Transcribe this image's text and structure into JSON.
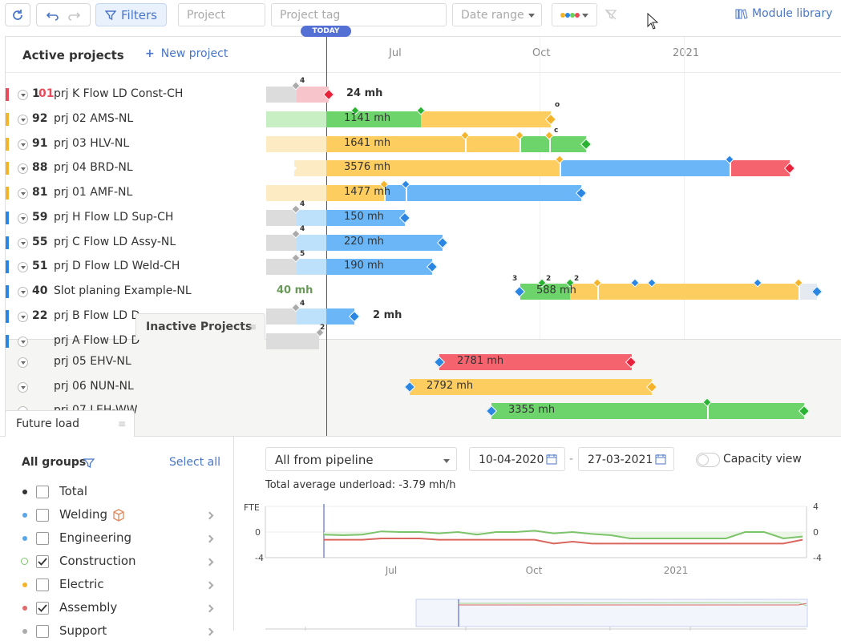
{
  "toolbar": {
    "filters_label": "Filters",
    "project_placeholder": "Project",
    "project_tag_placeholder": "Project tag",
    "date_range_placeholder": "Date range",
    "module_library_label": "Module library"
  },
  "gantt": {
    "today_label": "TODAY",
    "active_title": "Active projects",
    "new_project_label": "New project",
    "axis_labels": [
      "Jul",
      "Oct",
      "2021"
    ],
    "inactive_title": "Inactive Projects",
    "future_load_title": "Future load",
    "active_rows": [
      {
        "num": "1",
        "num_red": "01",
        "name": "prj K Flow LD Const-CH",
        "flag": "#e84b5a",
        "load": "24 mh"
      },
      {
        "num": "92",
        "name": "prj 02 AMS-NL",
        "flag": "#f3b32a",
        "load": "1141 mh"
      },
      {
        "num": "91",
        "name": "prj 03 HLV-NL",
        "flag": "#f3b32a",
        "load": "1641 mh"
      },
      {
        "num": "88",
        "name": "prj 04 BRD-NL",
        "flag": "#f3b32a",
        "load": "3576 mh"
      },
      {
        "num": "81",
        "name": "prj 01 AMF-NL",
        "flag": "#f3b32a",
        "load": "1477 mh"
      },
      {
        "num": "59",
        "name": "prj H Flow LD Sup-CH",
        "flag": "#2b86e3",
        "load": "150 mh"
      },
      {
        "num": "55",
        "name": "prj C Flow LD Assy-NL",
        "flag": "#2b86e3",
        "load": "220 mh"
      },
      {
        "num": "51",
        "name": "prj D Flow LD Weld-CH",
        "flag": "#2b86e3",
        "load": "190 mh"
      },
      {
        "num": "40",
        "name": "Slot planing Example-NL",
        "flag": "#2b86e3",
        "load": "588 mh",
        "side_load": "40 mh"
      },
      {
        "num": "22",
        "name": "prj B Flow LD D",
        "flag": "#2b86e3",
        "load": "2 mh"
      },
      {
        "num": "",
        "name": "prj A Flow LD D",
        "flag": "#2b86e3",
        "load": ""
      }
    ],
    "inactive_rows": [
      {
        "name": "prj 05 EHV-NL",
        "load": "2781 mh"
      },
      {
        "name": "prj 06 NUN-NL",
        "load": "2792 mh"
      },
      {
        "name": "prj 07 LEH-WW",
        "load": "3355 mh"
      }
    ],
    "milestone_counts": [
      "4",
      "o",
      "c",
      "4",
      "4",
      "5",
      "3",
      "2",
      "2",
      "4",
      "2"
    ]
  },
  "panel": {
    "all_groups_label": "All groups",
    "select_all_label": "Select all",
    "groups": [
      {
        "name": "Total",
        "checked": false,
        "color": "#333"
      },
      {
        "name": "Welding",
        "checked": false,
        "color": "#5aa5e8"
      },
      {
        "name": "Engineering",
        "checked": false,
        "color": "#5aa5e8"
      },
      {
        "name": "Construction",
        "checked": true,
        "color": "#8fd46c"
      },
      {
        "name": "Electric",
        "checked": false,
        "color": "#f3b32a"
      },
      {
        "name": "Assembly",
        "checked": true,
        "color": "#e06b6b"
      },
      {
        "name": "Support",
        "checked": false,
        "color": "#aaa"
      }
    ],
    "pipeline_select": "All from pipeline",
    "date_from": "10-04-2020",
    "date_sep": "-",
    "date_to": "27-03-2021",
    "capacity_label": "Capacity view",
    "underload_text": "Total average underload: -3.79 mh/h",
    "chart_y_label": "FTE",
    "chart_y_ticks": [
      "4",
      "0",
      "-4"
    ],
    "chart_x_labels": [
      "Jul",
      "Oct",
      "2021"
    ]
  },
  "chart_data": {
    "type": "line",
    "title": "",
    "ylabel": "FTE",
    "ylim": [
      -4,
      4
    ],
    "x_tick_labels": [
      "Jul",
      "Oct",
      "2021"
    ],
    "series": [
      {
        "color": "#7dc36b",
        "values": [
          -0.4,
          -0.5,
          -0.4,
          0.1,
          0.0,
          0.0,
          -0.2,
          0.0,
          -0.4,
          0.0,
          0.0,
          0.2,
          -0.2,
          0.0,
          -0.3,
          -0.5,
          -1.0,
          -1.0,
          -1.0,
          -1.0,
          -1.0,
          -1.0,
          0.0,
          0.0,
          -1.0,
          -0.7
        ]
      },
      {
        "color": "#d9665f",
        "values": [
          -1.2,
          -1.2,
          -1.2,
          -1.0,
          -1.0,
          -1.0,
          -1.2,
          -1.2,
          -1.2,
          -1.2,
          -1.2,
          -1.2,
          -1.8,
          -1.5,
          -1.8,
          -1.8,
          -1.8,
          -1.8,
          -1.8,
          -1.8,
          -1.8,
          -1.8,
          -1.8,
          -1.8,
          -1.8,
          -1.2
        ]
      }
    ]
  }
}
